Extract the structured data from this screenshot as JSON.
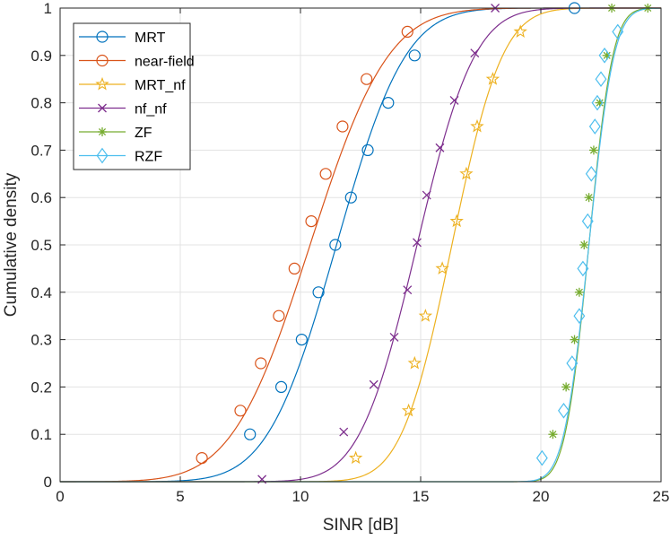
{
  "chart_data": {
    "type": "line",
    "xlabel": "SINR [dB]",
    "ylabel": "Cumulative density",
    "xlim": [
      0,
      25
    ],
    "ylim": [
      0,
      1
    ],
    "xticks": [
      "0",
      "5",
      "10",
      "15",
      "20",
      "25"
    ],
    "yticks": [
      "0",
      "0.1",
      "0.2",
      "0.3",
      "0.4",
      "0.5",
      "0.6",
      "0.7",
      "0.8",
      "0.9",
      "1"
    ],
    "grid": true,
    "legend_position": "top-left",
    "series": [
      {
        "name": "MRT",
        "color": "#0072BD",
        "marker": "circle",
        "cdf_mean": 11.5,
        "cdf_sd": 2.25,
        "x": [
          7.9,
          9.2,
          10.05,
          10.75,
          11.45,
          12.1,
          12.8,
          13.65,
          14.75,
          21.4
        ],
        "y": [
          0.1,
          0.2,
          0.3,
          0.4,
          0.5,
          0.6,
          0.7,
          0.8,
          0.9,
          1.0
        ]
      },
      {
        "name": "near-field",
        "color": "#D95319",
        "marker": "circle",
        "cdf_mean": 10.4,
        "cdf_sd": 2.55,
        "x": [
          5.9,
          7.5,
          8.35,
          9.1,
          9.75,
          10.45,
          11.05,
          11.75,
          12.75,
          14.45
        ],
        "y": [
          0.05,
          0.15,
          0.25,
          0.35,
          0.45,
          0.55,
          0.65,
          0.75,
          0.85,
          0.95
        ]
      },
      {
        "name": "MRT_nf",
        "color": "#EDB120",
        "marker": "star",
        "cdf_mean": 16.3,
        "cdf_sd": 1.65,
        "x": [
          12.3,
          14.5,
          14.75,
          15.2,
          15.9,
          16.5,
          16.9,
          17.35,
          18.0,
          19.15
        ],
        "y": [
          0.05,
          0.15,
          0.25,
          0.35,
          0.45,
          0.55,
          0.65,
          0.75,
          0.85,
          0.95
        ]
      },
      {
        "name": "nf_nf",
        "color": "#7E2F8E",
        "marker": "x",
        "cdf_mean": 14.85,
        "cdf_sd": 1.88,
        "x": [
          8.4,
          11.8,
          13.05,
          13.9,
          14.45,
          14.85,
          15.25,
          15.8,
          16.4,
          17.25,
          18.1
        ],
        "y": [
          0.005,
          0.105,
          0.205,
          0.305,
          0.405,
          0.505,
          0.605,
          0.705,
          0.805,
          0.905,
          1.0
        ]
      },
      {
        "name": "ZF",
        "color": "#77AC30",
        "marker": "asterisk",
        "cdf_mean": 22.0,
        "cdf_sd": 0.78,
        "x": [
          20.5,
          21.05,
          21.4,
          21.6,
          21.8,
          22.0,
          22.2,
          22.45,
          22.75,
          22.95,
          24.45
        ],
        "y": [
          0.1,
          0.2,
          0.3,
          0.4,
          0.5,
          0.6,
          0.7,
          0.8,
          0.9,
          1.0,
          1.0
        ]
      },
      {
        "name": "RZF",
        "color": "#4DBEEE",
        "marker": "diamond",
        "cdf_mean": 22.0,
        "cdf_sd": 0.82,
        "x": [
          20.05,
          20.95,
          21.3,
          21.6,
          21.75,
          21.95,
          22.1,
          22.25,
          22.35,
          22.5,
          22.65,
          23.2
        ],
        "y": [
          0.05,
          0.15,
          0.25,
          0.35,
          0.45,
          0.55,
          0.65,
          0.75,
          0.8,
          0.85,
          0.9,
          0.95
        ]
      }
    ]
  }
}
